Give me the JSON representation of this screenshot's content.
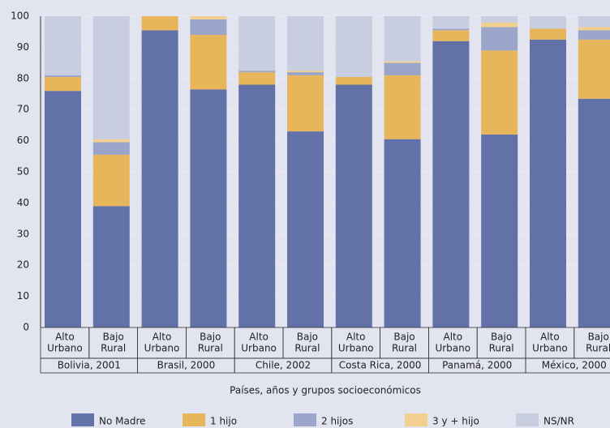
{
  "chart_data": {
    "type": "stacked_bar",
    "x_label": "Países, años y grupos socioeconómicos",
    "categories": [
      [
        "Alto",
        "Urbano"
      ],
      [
        "Bajo",
        "Rural"
      ],
      [
        "Alto",
        "Urbano"
      ],
      [
        "Bajo",
        "Rural"
      ],
      [
        "Alto",
        "Urbano"
      ],
      [
        "Bajo",
        "Rural"
      ],
      [
        "Alto",
        "Urbano"
      ],
      [
        "Bajo",
        "Rural"
      ],
      [
        "Alto",
        "Urbano"
      ],
      [
        "Bajo",
        "Rural"
      ],
      [
        "Alto",
        "Urbano"
      ],
      [
        "Bajo",
        "Rural"
      ]
    ],
    "groups": [
      "Bolivia, 2001",
      "Brasil, 2000",
      "Chile, 2002",
      "Costa Rica, 2000",
      "Panamá, 2000",
      "México, 2000"
    ],
    "series": [
      {
        "name": "No Madre",
        "color": "#6272a8",
        "values": [
          76,
          39,
          95.5,
          76.5,
          78,
          63,
          78,
          60.5,
          92,
          62,
          92.5,
          73.5
        ]
      },
      {
        "name": "1 hijo",
        "color": "#e8b65a",
        "values": [
          4.5,
          16.5,
          4.5,
          17.5,
          4,
          18,
          2.5,
          20.5,
          3.5,
          27,
          3.5,
          19
        ]
      },
      {
        "name": "2 hijos",
        "color": "#9aa5c9",
        "values": [
          0.5,
          4,
          0,
          5,
          0.5,
          1,
          0,
          4,
          0.5,
          7.5,
          0,
          3
        ]
      },
      {
        "name": "3 y + hijo",
        "color": "#f1cf8f",
        "values": [
          0,
          1,
          0,
          1,
          0,
          0.5,
          0,
          0.5,
          0,
          1.5,
          0,
          1
        ]
      },
      {
        "name": "NS/NR",
        "color": "#c9cde0",
        "values": [
          19,
          39.5,
          0,
          0,
          17.5,
          17.5,
          19.5,
          14.5,
          4,
          2,
          4,
          3.5
        ]
      }
    ],
    "ylim": [
      0,
      100
    ],
    "yticks": [
      0,
      10,
      20,
      30,
      40,
      50,
      60,
      70,
      80,
      90,
      100
    ],
    "grid": true
  }
}
